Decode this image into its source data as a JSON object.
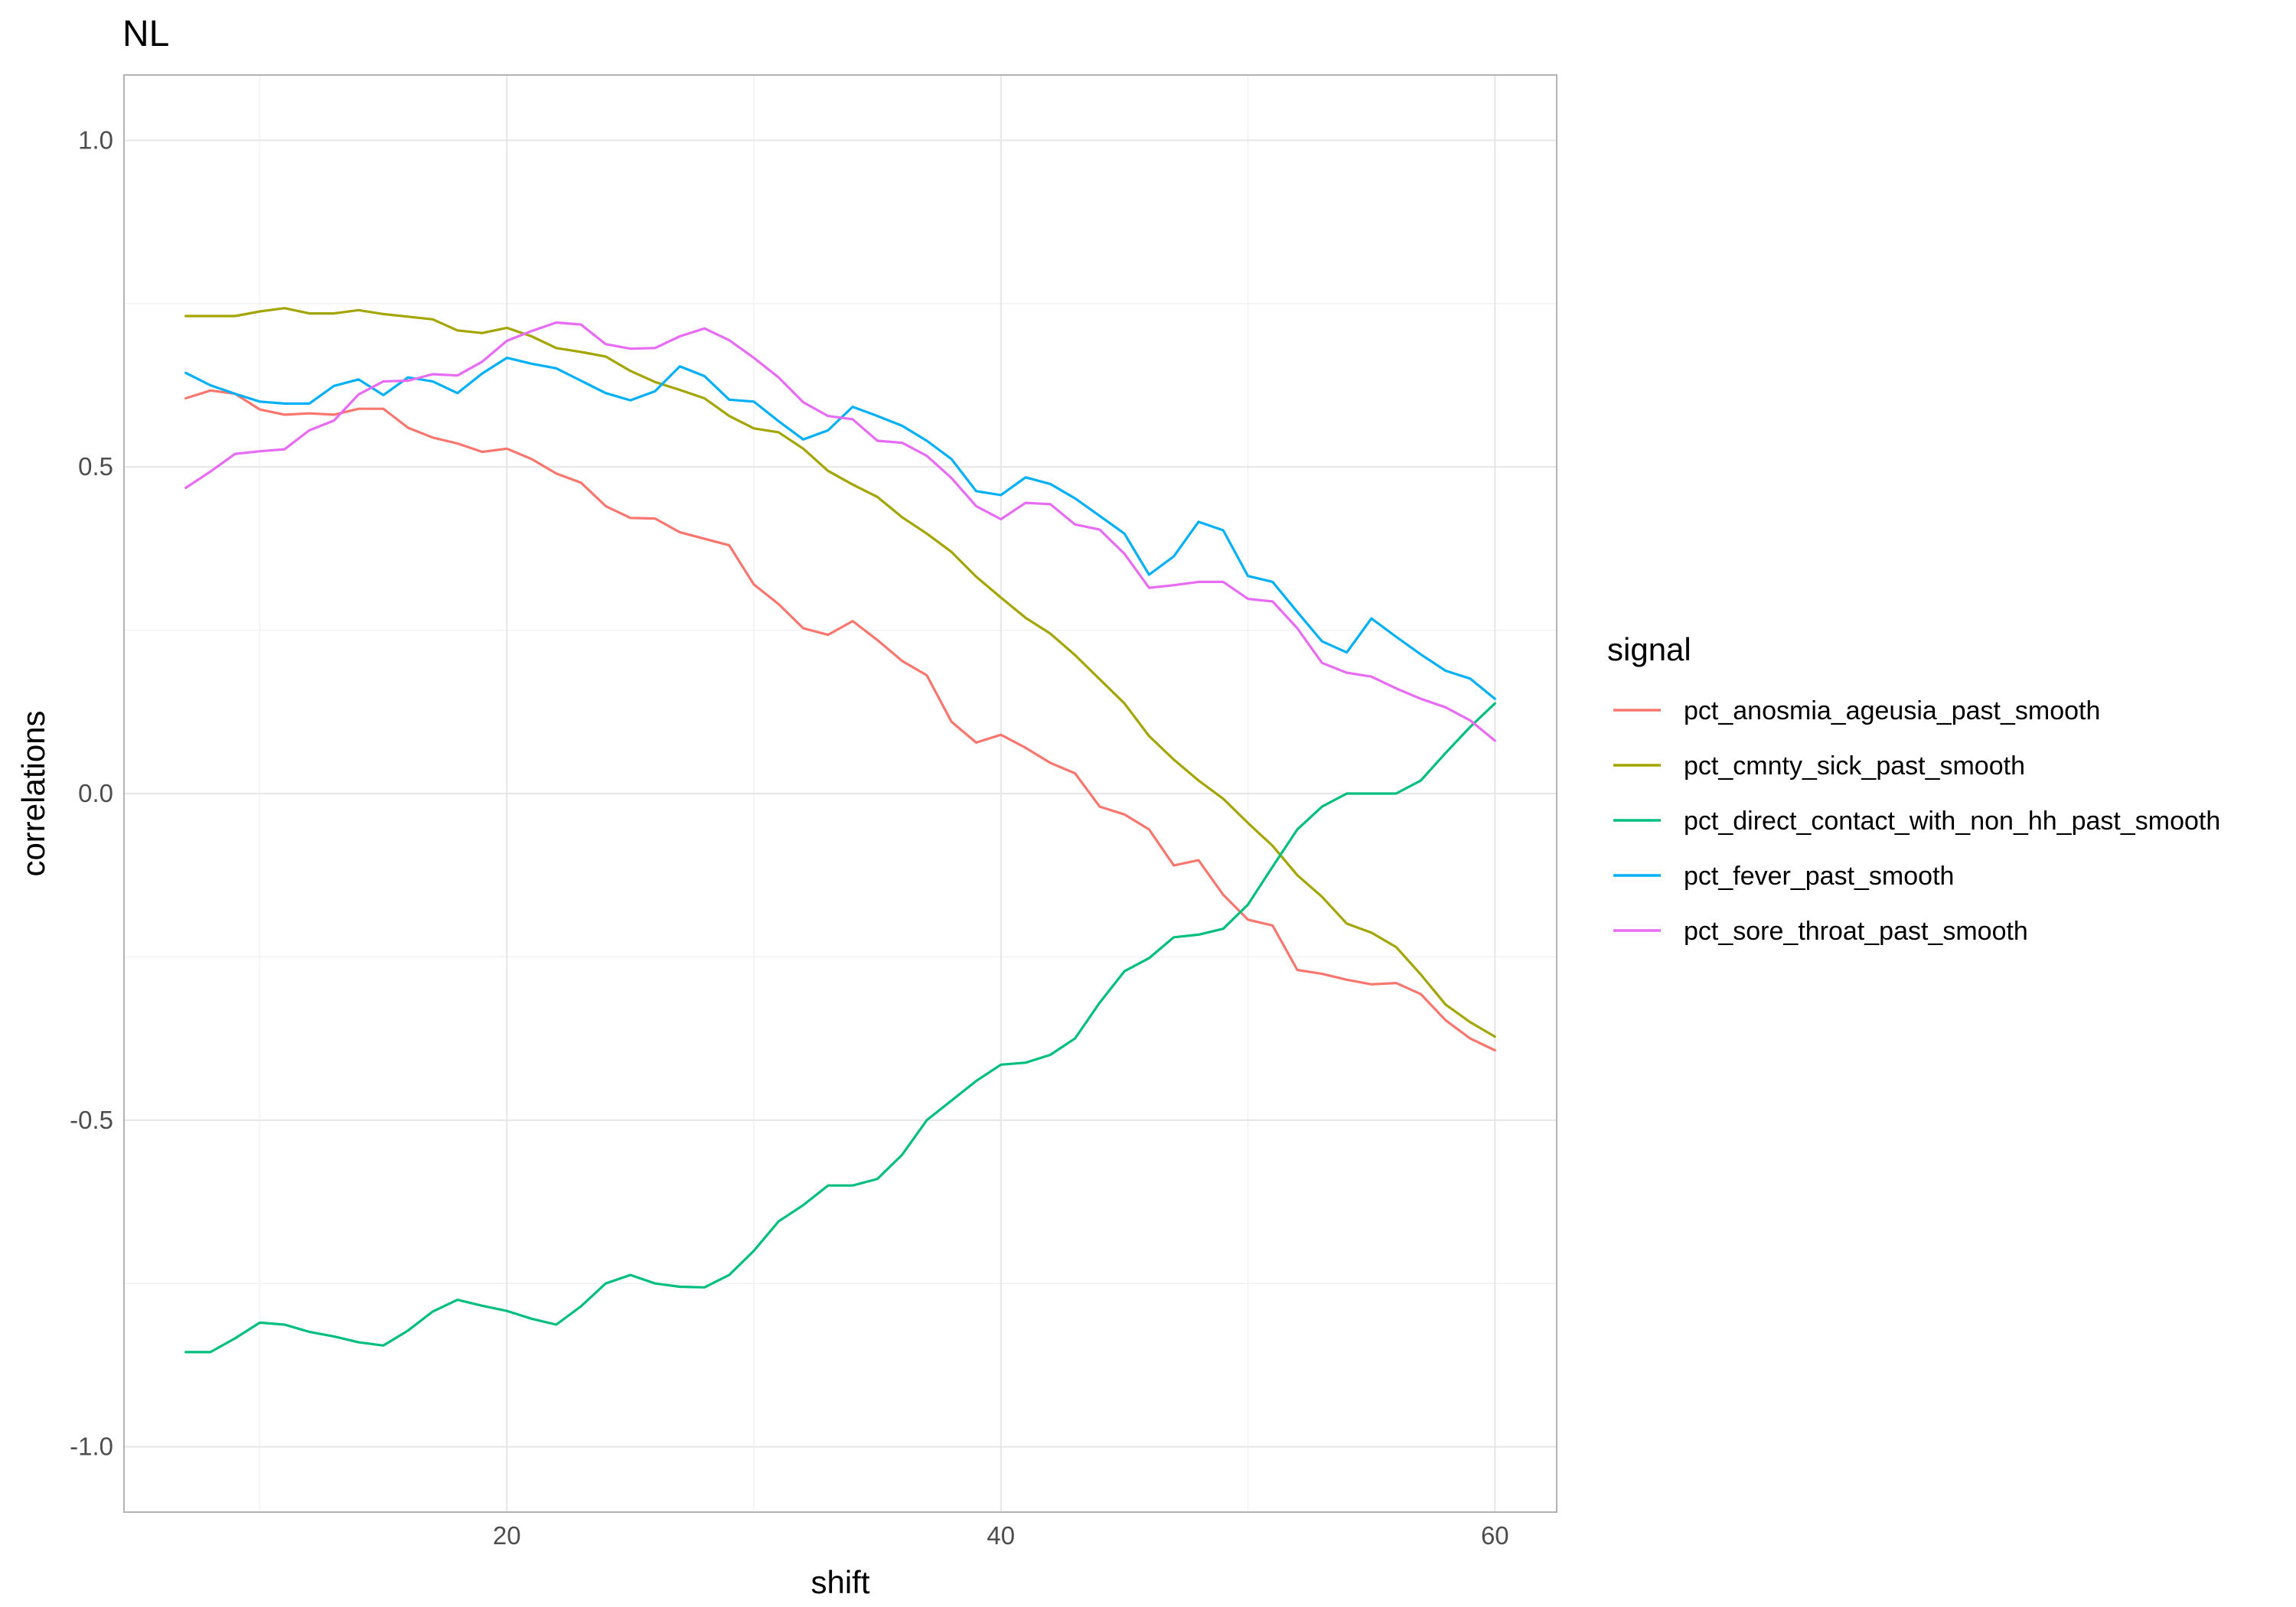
{
  "chart_data": {
    "type": "line",
    "title": "NL",
    "xlabel": "shift",
    "ylabel": "correlations",
    "xlim": [
      4.5,
      62.5
    ],
    "ylim": [
      -1.1,
      1.1
    ],
    "x_ticks": [
      20,
      40,
      60
    ],
    "x_tick_labels": [
      "20",
      "40",
      "60"
    ],
    "y_ticks": [
      1.0,
      0.5,
      0.0,
      -0.5,
      -1.0
    ],
    "y_tick_labels": [
      "1.0",
      "0.5",
      "0.0",
      "-0.5",
      "-1.0"
    ],
    "grid": true,
    "legend_title": "signal",
    "legend_position": "right",
    "x": [
      7,
      8,
      9,
      10,
      11,
      12,
      13,
      14,
      15,
      16,
      17,
      18,
      19,
      20,
      21,
      22,
      23,
      24,
      25,
      26,
      27,
      28,
      29,
      30,
      31,
      32,
      33,
      34,
      35,
      36,
      37,
      38,
      39,
      40,
      41,
      42,
      43,
      44,
      45,
      46,
      47,
      48,
      49,
      50,
      51,
      52,
      53,
      54,
      55,
      56,
      57,
      58,
      59,
      60
    ],
    "series": [
      {
        "name": "pct_anosmia_ageusia_past_smooth",
        "color": "#F8766D",
        "values": [
          0.605,
          0.617,
          0.612,
          0.588,
          0.58,
          0.582,
          0.58,
          0.589,
          0.589,
          0.56,
          0.545,
          0.536,
          0.523,
          0.528,
          0.512,
          0.49,
          0.476,
          0.44,
          0.422,
          0.421,
          0.4,
          0.39,
          0.38,
          0.32,
          0.29,
          0.253,
          0.243,
          0.264,
          0.235,
          0.203,
          0.181,
          0.11,
          0.078,
          0.09,
          0.07,
          0.047,
          0.031,
          -0.02,
          -0.032,
          -0.055,
          -0.11,
          -0.102,
          -0.155,
          -0.193,
          -0.202,
          -0.27,
          -0.276,
          -0.285,
          -0.292,
          -0.29,
          -0.307,
          -0.347,
          -0.375,
          -0.393
        ]
      },
      {
        "name": "pct_cmnty_sick_past_smooth",
        "color": "#A3A500",
        "values": [
          0.731,
          0.731,
          0.731,
          0.738,
          0.743,
          0.735,
          0.735,
          0.74,
          0.734,
          0.73,
          0.726,
          0.709,
          0.705,
          0.713,
          0.7,
          0.682,
          0.676,
          0.669,
          0.647,
          0.63,
          0.618,
          0.605,
          0.578,
          0.559,
          0.553,
          0.528,
          0.494,
          0.473,
          0.454,
          0.423,
          0.398,
          0.37,
          0.332,
          0.3,
          0.269,
          0.245,
          0.212,
          0.175,
          0.138,
          0.088,
          0.052,
          0.02,
          -0.008,
          -0.045,
          -0.08,
          -0.125,
          -0.158,
          -0.199,
          -0.213,
          -0.235,
          -0.277,
          -0.323,
          -0.35,
          -0.372
        ]
      },
      {
        "name": "pct_direct_contact_with_non_hh_past_smooth",
        "color": "#00BF7D",
        "values": [
          -0.855,
          -0.855,
          -0.834,
          -0.81,
          -0.813,
          -0.824,
          -0.831,
          -0.84,
          -0.845,
          -0.822,
          -0.793,
          -0.775,
          -0.784,
          -0.792,
          -0.804,
          -0.813,
          -0.785,
          -0.75,
          -0.737,
          -0.75,
          -0.755,
          -0.756,
          -0.737,
          -0.7,
          -0.655,
          -0.63,
          -0.6,
          -0.6,
          -0.59,
          -0.553,
          -0.5,
          -0.47,
          -0.44,
          -0.415,
          -0.412,
          -0.4,
          -0.375,
          -0.32,
          -0.272,
          -0.252,
          -0.22,
          -0.216,
          -0.207,
          -0.17,
          -0.112,
          -0.055,
          -0.02,
          0.0,
          0.0,
          0.0,
          0.02,
          0.062,
          0.102,
          0.138
        ]
      },
      {
        "name": "pct_fever_past_smooth",
        "color": "#00B0F6",
        "values": [
          0.644,
          0.625,
          0.612,
          0.6,
          0.597,
          0.597,
          0.624,
          0.634,
          0.61,
          0.637,
          0.631,
          0.613,
          0.643,
          0.667,
          0.658,
          0.651,
          0.632,
          0.613,
          0.602,
          0.616,
          0.654,
          0.639,
          0.603,
          0.6,
          0.57,
          0.542,
          0.556,
          0.592,
          0.578,
          0.563,
          0.54,
          0.512,
          0.463,
          0.457,
          0.484,
          0.474,
          0.452,
          0.425,
          0.398,
          0.335,
          0.363,
          0.416,
          0.403,
          0.333,
          0.324,
          0.278,
          0.233,
          0.216,
          0.268,
          0.24,
          0.213,
          0.188,
          0.176,
          0.145
        ]
      },
      {
        "name": "pct_sore_throat_past_smooth",
        "color": "#E76BF3",
        "values": [
          0.468,
          0.493,
          0.52,
          0.524,
          0.527,
          0.556,
          0.571,
          0.611,
          0.631,
          0.632,
          0.642,
          0.64,
          0.661,
          0.693,
          0.708,
          0.721,
          0.718,
          0.688,
          0.681,
          0.682,
          0.7,
          0.712,
          0.694,
          0.667,
          0.637,
          0.599,
          0.578,
          0.573,
          0.54,
          0.537,
          0.517,
          0.483,
          0.44,
          0.42,
          0.445,
          0.443,
          0.412,
          0.404,
          0.367,
          0.315,
          0.319,
          0.324,
          0.324,
          0.298,
          0.294,
          0.253,
          0.2,
          0.185,
          0.179,
          0.161,
          0.145,
          0.132,
          0.112,
          0.081
        ]
      }
    ]
  }
}
